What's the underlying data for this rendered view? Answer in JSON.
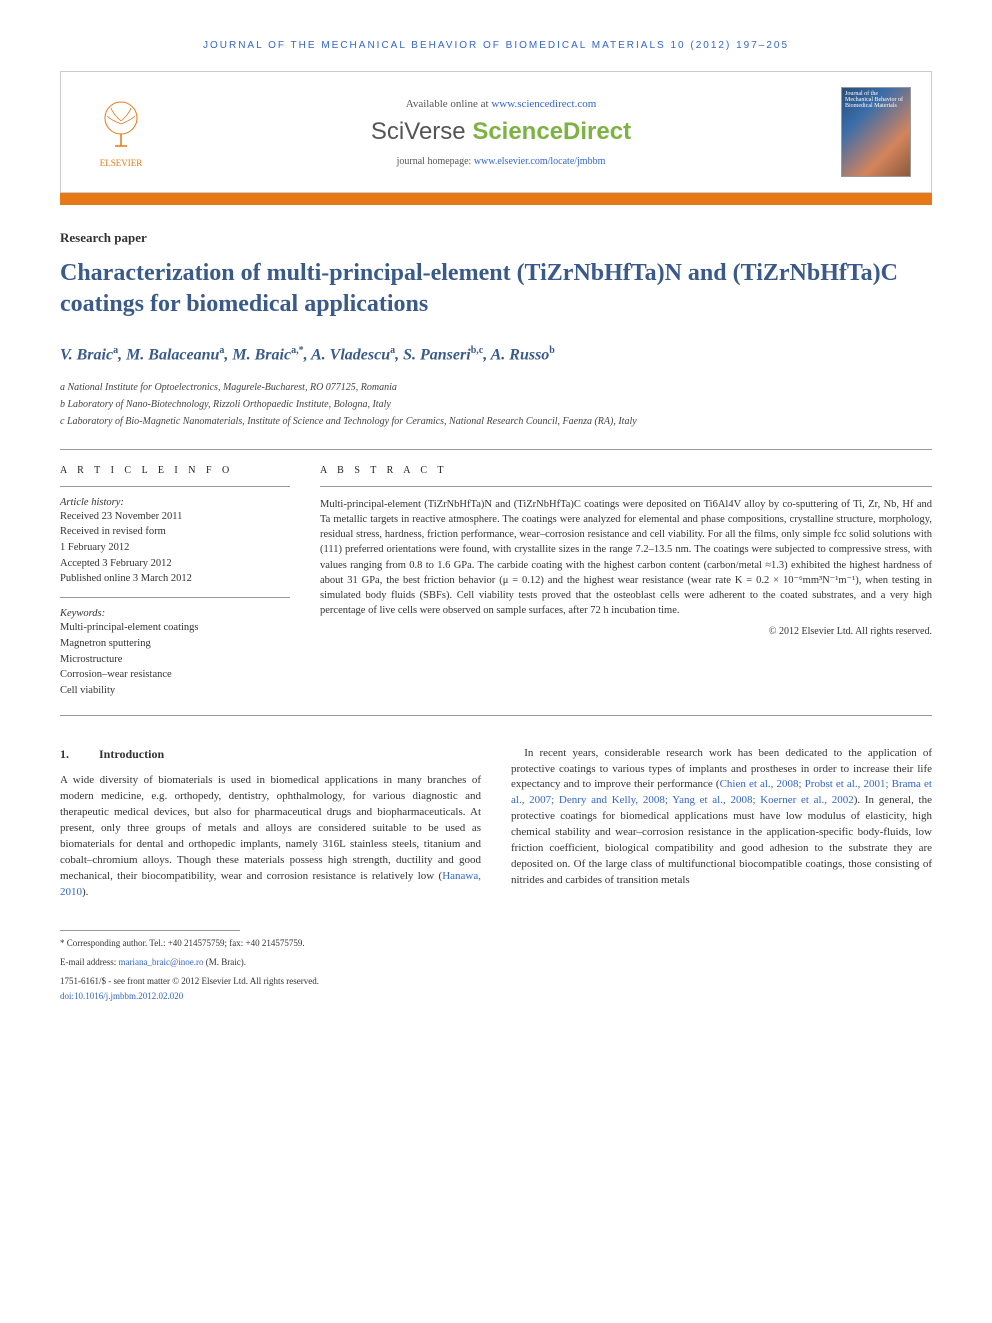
{
  "journal_header": "JOURNAL OF THE MECHANICAL BEHAVIOR OF BIOMEDICAL MATERIALS 10 (2012) 197–205",
  "topbox": {
    "elsevier": "ELSEVIER",
    "available": "Available online at ",
    "sd_url": "www.sciencedirect.com",
    "sciverse_brand": "SciVerse ",
    "sciverse_name": "ScienceDirect",
    "homepage_label": "journal homepage: ",
    "homepage_url": "www.elsevier.com/locate/jmbbm",
    "cover_text": "Journal of the Mechanical Behavior of Biomedical Materials"
  },
  "article_type": "Research paper",
  "title": "Characterization of multi-principal-element (TiZrNbHfTa)N and (TiZrNbHfTa)C coatings for biomedical applications",
  "authors_html": "V. Braic<sup>a</sup>, M. Balaceanu<sup>a</sup>, M. Braic<sup>a,*</sup>, A. Vladescu<sup>a</sup>, S. Panseri<sup>b,c</sup>, A. Russo<sup>b</sup>",
  "affiliations": [
    "a National Institute for Optoelectronics, Magurele-Bucharest, RO 077125, Romania",
    "b Laboratory of Nano-Biotechnology, Rizzoli Orthopaedic Institute, Bologna, Italy",
    "c Laboratory of Bio-Magnetic Nanomaterials, Institute of Science and Technology for Ceramics, National Research Council, Faenza (RA), Italy"
  ],
  "info": {
    "heading": "A R T I C L E   I N F O",
    "history_label": "Article history:",
    "history": [
      "Received 23 November 2011",
      "Received in revised form",
      "1 February 2012",
      "Accepted 3 February 2012",
      "Published online 3 March 2012"
    ],
    "keywords_label": "Keywords:",
    "keywords": [
      "Multi-principal-element coatings",
      "Magnetron sputtering",
      "Microstructure",
      "Corrosion–wear resistance",
      "Cell viability"
    ]
  },
  "abstract": {
    "heading": "A B S T R A C T",
    "text": "Multi-principal-element (TiZrNbHfTa)N and (TiZrNbHfTa)C coatings were deposited on Ti6Al4V alloy by co-sputtering of Ti, Zr, Nb, Hf and Ta metallic targets in reactive atmosphere. The coatings were analyzed for elemental and phase compositions, crystalline structure, morphology, residual stress, hardness, friction performance, wear–corrosion resistance and cell viability. For all the films, only simple fcc solid solutions with (111) preferred orientations were found, with crystallite sizes in the range 7.2–13.5 nm. The coatings were subjected to compressive stress, with values ranging from 0.8 to 1.6 GPa. The carbide coating with the highest carbon content (carbon/metal ≈1.3) exhibited the highest hardness of about 31 GPa, the best friction behavior (μ = 0.12) and the highest wear resistance (wear rate K = 0.2 × 10⁻⁶mm³N⁻¹m⁻¹), when testing in simulated body fluids (SBFs). Cell viability tests proved that the osteoblast cells were adherent to the coated substrates, and a very high percentage of live cells were observed on sample surfaces, after 72 h incubation time.",
    "copyright": "© 2012 Elsevier Ltd. All rights reserved."
  },
  "section1": {
    "num": "1.",
    "heading": "Introduction",
    "col1_a": "A wide diversity of biomaterials is used in biomedical applications in many branches of modern medicine, e.g. orthopedy, dentistry, ophthalmology, for various diagnostic and therapeutic medical devices, but also for pharmaceutical drugs and biopharmaceuticals. At present, only three groups of metals and alloys are considered suitable to be used as biomaterials for dental and orthopedic implants, namely 316L stainless steels, titanium and cobalt–chromium alloys. Though these materials possess high strength, ductility and good mechanical, their biocompatibility, wear and corrosion resistance is relatively low (",
    "col1_ref": "Hanawa, 2010",
    "col1_b": ").",
    "col2_a": "In recent years, considerable research work has been dedicated to the application of protective coatings to various types of implants and prostheses in order to increase their life expectancy and to improve their performance (",
    "col2_refs": "Chien et al., 2008; Probst et al., 2001; Brama et al., 2007; Denry and Kelly, 2008; Yang et al., 2008; Koerner et al., 2002",
    "col2_b": "). In general, the protective coatings for biomedical applications must have low modulus of elasticity, high chemical stability and wear–corrosion resistance in the application-specific body-fluids, low friction coefficient, biological compatibility and good adhesion to the substrate they are deposited on. Of the large class of multifunctional biocompatible coatings, those consisting of nitrides and carbides of transition metals"
  },
  "footnote": {
    "corresponding": "* Corresponding author. Tel.: +40 214575759; fax: +40 214575759.",
    "email_label": "E-mail address: ",
    "email": "mariana_braic@inoe.ro",
    "email_who": " (M. Braic).",
    "issn": "1751-6161/$ - see front matter © 2012 Elsevier Ltd. All rights reserved.",
    "doi": "doi:10.1016/j.jmbbm.2012.02.020"
  },
  "colors": {
    "orange": "#e67817",
    "title_blue": "#3a5a8a",
    "link_blue": "#3366cc",
    "green": "#7cb342"
  }
}
